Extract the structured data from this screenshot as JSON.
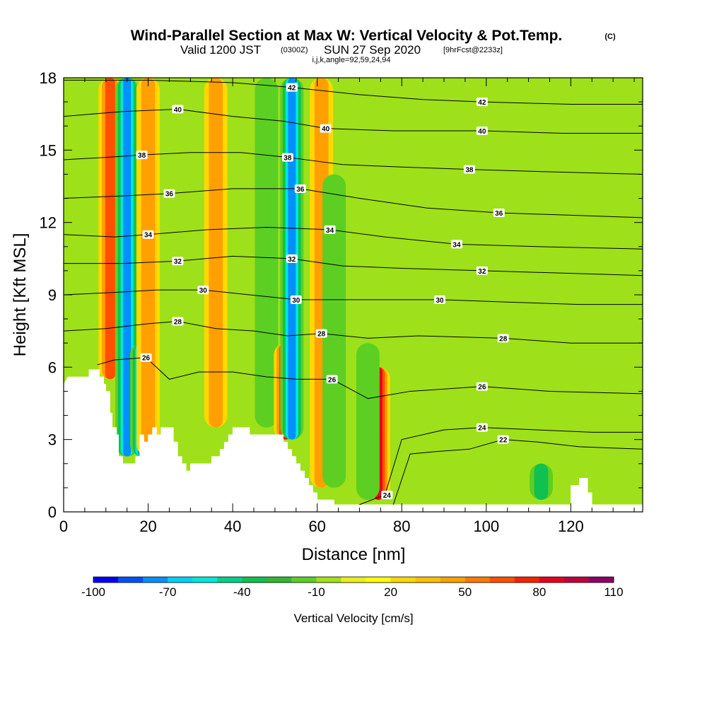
{
  "title": {
    "main": "Wind-Parallel Section at Max W: Vertical Velocity & Pot.Temp.",
    "main_unit": "(C)",
    "valid_prefix": "Valid 1200 JST",
    "valid_utc": "(0300Z)",
    "valid_date": "SUN 27 Sep 2020",
    "forecast": "[9hrFcst@2233z]",
    "indices": "i,j,k,angle=92,59,24,94"
  },
  "chart_data": {
    "type": "heatmap",
    "xlabel": "Distance [nm]",
    "ylabel": "Height [Kft MSL]",
    "xlim": [
      0,
      137
    ],
    "ylim": [
      0,
      18
    ],
    "x_ticks": [
      0,
      20,
      40,
      60,
      80,
      100,
      120
    ],
    "y_ticks": [
      0,
      3,
      6,
      9,
      12,
      15,
      18
    ],
    "x_tick_labels": [
      "0",
      "20",
      "40",
      "60",
      "80",
      "100",
      "120"
    ],
    "y_tick_labels": [
      "0",
      "3",
      "6",
      "9",
      "12",
      "15",
      "18"
    ],
    "grid": false,
    "field": "Vertical Velocity",
    "colorbar": {
      "label": "Vertical Velocity [cm/s]",
      "min": -100,
      "max": 110,
      "step": 10,
      "tick_values": [
        -100,
        -70,
        -40,
        -10,
        20,
        50,
        80,
        110
      ],
      "tick_labels": [
        "-100",
        "-70",
        "-40",
        "-10",
        "20",
        "50",
        "80",
        "110"
      ],
      "colors": [
        "#0000ff",
        "#0050ff",
        "#0090ff",
        "#00d0ff",
        "#00e8d8",
        "#00d08c",
        "#10c050",
        "#30b830",
        "#5ccf22",
        "#a4e018",
        "#e8f018",
        "#ffff00",
        "#ffd800",
        "#ffbe00",
        "#ffa000",
        "#ff7800",
        "#ff5000",
        "#ff2000",
        "#e80020",
        "#c00040",
        "#8c0068"
      ]
    },
    "updraft_columns": [
      {
        "x": 11,
        "z_bottom": 5.5,
        "z_top": 18,
        "peak": 60
      },
      {
        "x": 15,
        "z_bottom": 2.3,
        "z_top": 18,
        "peak": -95
      },
      {
        "x": 18.5,
        "z_bottom": 2.3,
        "z_top": 7,
        "peak": -80
      },
      {
        "x": 20,
        "z_bottom": 2.3,
        "z_top": 18,
        "peak": 40
      },
      {
        "x": 36,
        "z_bottom": 3.5,
        "z_top": 18,
        "peak": 40
      },
      {
        "x": 48,
        "z_bottom": 3.5,
        "z_top": 18,
        "peak": -30
      },
      {
        "x": 52.5,
        "z_bottom": 3,
        "z_top": 7,
        "peak": 90
      },
      {
        "x": 54,
        "z_bottom": 3,
        "z_top": 18,
        "peak": -80
      },
      {
        "x": 61,
        "z_bottom": 1,
        "z_top": 18,
        "peak": 50
      },
      {
        "x": 64,
        "z_bottom": 1,
        "z_top": 14,
        "peak": -30
      },
      {
        "x": 74.5,
        "z_bottom": 0.5,
        "z_top": 6,
        "peak": 90
      },
      {
        "x": 72,
        "z_bottom": 0.5,
        "z_top": 7,
        "peak": -30
      },
      {
        "x": 113,
        "z_bottom": 0.5,
        "z_top": 2,
        "peak": -45
      }
    ],
    "terrain_kft": [
      [
        0,
        5.3
      ],
      [
        1,
        5.6
      ],
      [
        6,
        5.6
      ],
      [
        6,
        5.9
      ],
      [
        8.5,
        5.9
      ],
      [
        8.5,
        5.6
      ],
      [
        9.5,
        5.6
      ],
      [
        9.5,
        5.3
      ],
      [
        10,
        5.3
      ],
      [
        10,
        5.0
      ],
      [
        11,
        5.0
      ],
      [
        11,
        4.1
      ],
      [
        11.5,
        4.1
      ],
      [
        11.5,
        3.5
      ],
      [
        12.5,
        3.5
      ],
      [
        12.5,
        3.2
      ],
      [
        13,
        3.2
      ],
      [
        13,
        2.3
      ],
      [
        14,
        2.3
      ],
      [
        14,
        2.0
      ],
      [
        17,
        2.0
      ],
      [
        17,
        2.3
      ],
      [
        18,
        2.3
      ],
      [
        18,
        3.2
      ],
      [
        19,
        3.2
      ],
      [
        19,
        2.9
      ],
      [
        20,
        2.9
      ],
      [
        20,
        3.2
      ],
      [
        21,
        3.2
      ],
      [
        21,
        3.5
      ],
      [
        22,
        3.5
      ],
      [
        22,
        3.2
      ],
      [
        23,
        3.2
      ],
      [
        23,
        3.5
      ],
      [
        26,
        3.5
      ],
      [
        26,
        2.9
      ],
      [
        27,
        2.9
      ],
      [
        27,
        2.3
      ],
      [
        28,
        2.3
      ],
      [
        28,
        2.0
      ],
      [
        29,
        2.0
      ],
      [
        29,
        1.7
      ],
      [
        30,
        1.7
      ],
      [
        30,
        2.0
      ],
      [
        35,
        2.0
      ],
      [
        35,
        2.3
      ],
      [
        37,
        2.3
      ],
      [
        37,
        2.6
      ],
      [
        38,
        2.6
      ],
      [
        38,
        2.9
      ],
      [
        39,
        2.9
      ],
      [
        39,
        3.2
      ],
      [
        40,
        3.2
      ],
      [
        40,
        3.5
      ],
      [
        44,
        3.5
      ],
      [
        44,
        3.2
      ],
      [
        52,
        3.2
      ],
      [
        52,
        2.9
      ],
      [
        53,
        2.9
      ],
      [
        53,
        2.6
      ],
      [
        54,
        2.6
      ],
      [
        54,
        2.3
      ],
      [
        55,
        2.3
      ],
      [
        55,
        2.0
      ],
      [
        56,
        2.0
      ],
      [
        56,
        1.7
      ],
      [
        57,
        1.7
      ],
      [
        57,
        1.4
      ],
      [
        58,
        1.4
      ],
      [
        58,
        1.1
      ],
      [
        59,
        1.1
      ],
      [
        59,
        0.8
      ],
      [
        60,
        0.8
      ],
      [
        60,
        0.5
      ],
      [
        64,
        0.5
      ],
      [
        64,
        0.3
      ],
      [
        73,
        0.3
      ],
      [
        73,
        0.3
      ],
      [
        120,
        0.3
      ],
      [
        120,
        1.1
      ],
      [
        122,
        1.1
      ],
      [
        122,
        1.4
      ],
      [
        124,
        1.4
      ],
      [
        124,
        0.8
      ],
      [
        125,
        0.8
      ],
      [
        125,
        0.3
      ],
      [
        137,
        0.3
      ]
    ],
    "theta_contour_labels": [
      {
        "text": "42",
        "x": 54,
        "y": 17.6
      },
      {
        "text": "42",
        "x": 99,
        "y": 17.0
      },
      {
        "text": "40",
        "x": 27,
        "y": 16.7
      },
      {
        "text": "40",
        "x": 62,
        "y": 15.9
      },
      {
        "text": "40",
        "x": 99,
        "y": 15.8
      },
      {
        "text": "38",
        "x": 18.5,
        "y": 14.8
      },
      {
        "text": "38",
        "x": 53,
        "y": 14.7
      },
      {
        "text": "38",
        "x": 96,
        "y": 14.2
      },
      {
        "text": "36",
        "x": 25,
        "y": 13.2
      },
      {
        "text": "36",
        "x": 56,
        "y": 13.4
      },
      {
        "text": "36",
        "x": 103,
        "y": 12.4
      },
      {
        "text": "34",
        "x": 20,
        "y": 11.5
      },
      {
        "text": "34",
        "x": 63,
        "y": 11.7
      },
      {
        "text": "34",
        "x": 93,
        "y": 11.1
      },
      {
        "text": "32",
        "x": 27,
        "y": 10.4
      },
      {
        "text": "32",
        "x": 54,
        "y": 10.5
      },
      {
        "text": "32",
        "x": 99,
        "y": 10.0
      },
      {
        "text": "30",
        "x": 33,
        "y": 9.2
      },
      {
        "text": "30",
        "x": 55,
        "y": 8.8
      },
      {
        "text": "30",
        "x": 89,
        "y": 8.8
      },
      {
        "text": "28",
        "x": 27,
        "y": 7.9
      },
      {
        "text": "28",
        "x": 61,
        "y": 7.4
      },
      {
        "text": "28",
        "x": 104,
        "y": 7.2
      },
      {
        "text": "26",
        "x": 19.5,
        "y": 6.4
      },
      {
        "text": "26",
        "x": 63.5,
        "y": 5.5
      },
      {
        "text": "26",
        "x": 99,
        "y": 5.2
      },
      {
        "text": "24",
        "x": 99,
        "y": 3.5
      },
      {
        "text": "24",
        "x": 76.5,
        "y": 0.7
      },
      {
        "text": "22",
        "x": 104,
        "y": 3.0
      }
    ],
    "theta_contours": [
      {
        "value": 22,
        "points": [
          [
            78,
            0.3
          ],
          [
            82,
            2.4
          ],
          [
            88,
            2.5
          ],
          [
            96,
            2.6
          ],
          [
            104,
            3.0
          ],
          [
            112,
            2.9
          ],
          [
            122,
            2.7
          ],
          [
            137,
            2.6
          ]
        ]
      },
      {
        "value": 24,
        "points": [
          [
            70,
            0.3
          ],
          [
            76,
            0.7
          ],
          [
            80,
            3.0
          ],
          [
            90,
            3.4
          ],
          [
            99,
            3.5
          ],
          [
            112,
            3.4
          ],
          [
            125,
            3.3
          ],
          [
            137,
            3.3
          ]
        ]
      },
      {
        "value": 26,
        "points": [
          [
            8,
            6.1
          ],
          [
            12,
            6.3
          ],
          [
            19.5,
            6.4
          ],
          [
            25,
            5.5
          ],
          [
            32,
            5.8
          ],
          [
            40,
            5.8
          ],
          [
            48,
            5.6
          ],
          [
            55,
            5.5
          ],
          [
            63.5,
            5.5
          ],
          [
            72,
            4.7
          ],
          [
            82,
            5.0
          ],
          [
            99,
            5.2
          ],
          [
            115,
            5.0
          ],
          [
            137,
            4.9
          ]
        ]
      },
      {
        "value": 28,
        "points": [
          [
            0,
            7.5
          ],
          [
            10,
            7.6
          ],
          [
            20,
            7.8
          ],
          [
            27,
            7.9
          ],
          [
            36,
            7.6
          ],
          [
            45,
            7.5
          ],
          [
            53,
            7.3
          ],
          [
            61,
            7.4
          ],
          [
            72,
            7.2
          ],
          [
            84,
            7.3
          ],
          [
            104,
            7.2
          ],
          [
            120,
            7.0
          ],
          [
            137,
            7.0
          ]
        ]
      },
      {
        "value": 30,
        "points": [
          [
            0,
            9.0
          ],
          [
            12,
            9.1
          ],
          [
            22,
            9.2
          ],
          [
            33,
            9.2
          ],
          [
            44,
            9.0
          ],
          [
            55,
            8.8
          ],
          [
            66,
            8.8
          ],
          [
            78,
            8.8
          ],
          [
            89,
            8.8
          ],
          [
            105,
            8.7
          ],
          [
            122,
            8.6
          ],
          [
            137,
            8.6
          ]
        ]
      },
      {
        "value": 32,
        "points": [
          [
            0,
            10.3
          ],
          [
            14,
            10.3
          ],
          [
            27,
            10.4
          ],
          [
            40,
            10.6
          ],
          [
            54,
            10.5
          ],
          [
            66,
            10.2
          ],
          [
            80,
            10.1
          ],
          [
            99,
            10.0
          ],
          [
            118,
            9.9
          ],
          [
            137,
            9.8
          ]
        ]
      },
      {
        "value": 34,
        "points": [
          [
            0,
            11.5
          ],
          [
            12,
            11.4
          ],
          [
            20,
            11.5
          ],
          [
            34,
            11.7
          ],
          [
            48,
            11.8
          ],
          [
            63,
            11.7
          ],
          [
            76,
            11.4
          ],
          [
            93,
            11.1
          ],
          [
            112,
            11.0
          ],
          [
            137,
            10.9
          ]
        ]
      },
      {
        "value": 36,
        "points": [
          [
            0,
            13.0
          ],
          [
            14,
            13.1
          ],
          [
            25,
            13.2
          ],
          [
            40,
            13.4
          ],
          [
            56,
            13.4
          ],
          [
            70,
            13.0
          ],
          [
            86,
            12.6
          ],
          [
            103,
            12.4
          ],
          [
            120,
            12.3
          ],
          [
            137,
            12.2
          ]
        ]
      },
      {
        "value": 38,
        "points": [
          [
            0,
            14.6
          ],
          [
            10,
            14.7
          ],
          [
            18.5,
            14.8
          ],
          [
            30,
            14.9
          ],
          [
            42,
            14.9
          ],
          [
            53,
            14.7
          ],
          [
            66,
            14.4
          ],
          [
            80,
            14.3
          ],
          [
            96,
            14.2
          ],
          [
            115,
            14.1
          ],
          [
            137,
            14.0
          ]
        ]
      },
      {
        "value": 40,
        "points": [
          [
            0,
            16.4
          ],
          [
            14,
            16.6
          ],
          [
            27,
            16.7
          ],
          [
            40,
            16.4
          ],
          [
            52,
            16.2
          ],
          [
            62,
            15.9
          ],
          [
            78,
            15.8
          ],
          [
            99,
            15.8
          ],
          [
            118,
            15.7
          ],
          [
            137,
            15.7
          ]
        ]
      },
      {
        "value": 42,
        "points": [
          [
            0,
            17.9
          ],
          [
            20,
            17.9
          ],
          [
            40,
            17.8
          ],
          [
            54,
            17.6
          ],
          [
            70,
            17.3
          ],
          [
            85,
            17.1
          ],
          [
            99,
            17.0
          ],
          [
            120,
            16.9
          ],
          [
            137,
            16.9
          ]
        ]
      }
    ]
  }
}
